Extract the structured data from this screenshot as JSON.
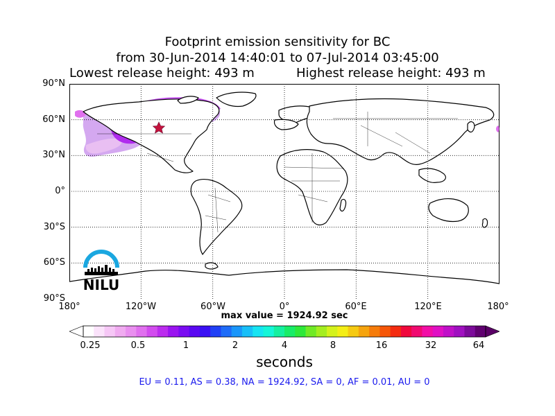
{
  "title": {
    "line1": "Footprint emission sensitivity for BC",
    "line2": "from 30-Jun-2014 14:40:01 to 07-Jul-2014 03:45:00",
    "lowest": "Lowest release height: 493 m",
    "highest": "Highest release height: 493 m"
  },
  "map": {
    "lat_labels": [
      "90°N",
      "60°N",
      "30°N",
      "0°",
      "30°S",
      "60°S",
      "90°S"
    ],
    "lon_labels": [
      "180°",
      "120°W",
      "60°W",
      "0°",
      "60°E",
      "120°E",
      "180°"
    ],
    "max_value": "max value = 1924.92 sec"
  },
  "colorbar": {
    "ticks": [
      "0.25",
      "0.5",
      "1",
      "2",
      "4",
      "8",
      "16",
      "32",
      "64"
    ],
    "unit": "seconds",
    "colors": [
      "#ffffff",
      "#fbe3fb",
      "#f6c7f6",
      "#f0abf0",
      "#e98fef",
      "#e070ee",
      "#d24cee",
      "#bb2cee",
      "#9a14f0",
      "#7a0cf2",
      "#5a08f2",
      "#3a10f4",
      "#2040f6",
      "#1e6cf8",
      "#1a96fa",
      "#18bff8",
      "#16e4f2",
      "#14f6d8",
      "#14f0a0",
      "#18ec68",
      "#2ee83a",
      "#70ea26",
      "#a4ee20",
      "#d4f21c",
      "#f4ee16",
      "#f6ca12",
      "#f6a40e",
      "#f67c0a",
      "#f65608",
      "#f42c10",
      "#f0083c",
      "#f00a70",
      "#f20ea6",
      "#e010c4",
      "#c010c8",
      "#a010c0",
      "#7c0a9a",
      "#600070"
    ]
  },
  "regions": "EU = 0.11,  AS = 0.38,  NA = 1924.92,  SA = 0,  AF = 0.01,  AU = 0",
  "logo": {
    "text": "NILU",
    "color": "#1aa7e0"
  },
  "marker": {
    "name": "star",
    "color": "#c4123c"
  }
}
